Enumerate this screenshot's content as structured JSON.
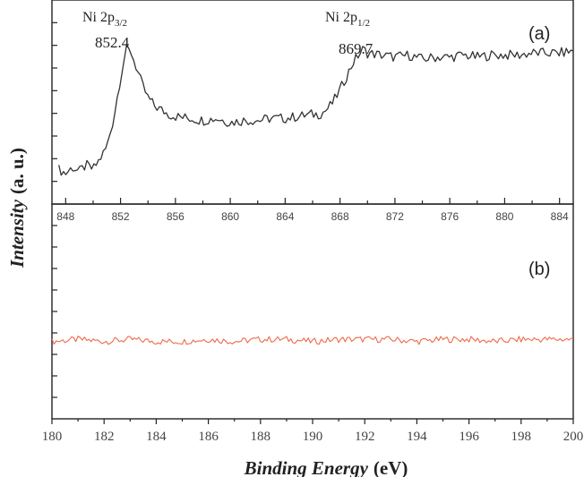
{
  "chart_data": [
    {
      "panel": "(a)",
      "type": "line",
      "xlim": [
        847,
        885
      ],
      "ylim": [
        0,
        100
      ],
      "x_ticks": [
        "848",
        "852",
        "856",
        "860",
        "864",
        "868",
        "872",
        "876",
        "880",
        "884"
      ],
      "annotations": [
        {
          "name": "Ni 2p",
          "sub": "3/2",
          "value": "852.4"
        },
        {
          "name": "Ni 2p",
          "sub": "1/2",
          "value": "869.7"
        }
      ],
      "color": "#333333",
      "series": [
        {
          "x": [
            847.5,
            848.0,
            848.5,
            849.0,
            849.5,
            850.0,
            850.5,
            851.0,
            851.5,
            852.0,
            852.4,
            852.8,
            853.2,
            853.6,
            854.0,
            854.5,
            855.0,
            855.5,
            856.0,
            857.0,
            858.0,
            859.0,
            860.0,
            861.0,
            862.0,
            863.0,
            864.0,
            865.0,
            866.0,
            866.5,
            867.0,
            867.5,
            868.0,
            868.5,
            869.0,
            869.7,
            870.0,
            871.0,
            872.0,
            873.0,
            874.0,
            875.0,
            876.0,
            877.0,
            878.0,
            879.0,
            880.0,
            881.0,
            882.0,
            883.0,
            884.0,
            885.0
          ],
          "y": [
            17,
            15,
            18,
            16,
            19,
            17,
            22,
            28,
            42,
            62,
            76,
            74,
            66,
            58,
            52,
            48,
            46,
            44,
            43,
            42,
            41,
            42,
            40,
            41,
            41,
            42,
            42,
            43,
            44,
            44,
            46,
            50,
            56,
            63,
            70,
            76,
            74,
            73,
            72,
            73,
            71,
            72,
            72,
            73,
            72,
            73,
            73,
            73,
            74,
            74,
            74,
            75
          ]
        }
      ]
    },
    {
      "panel": "(b)",
      "type": "line",
      "xlim": [
        180,
        200
      ],
      "ylim": [
        0,
        100
      ],
      "x_ticks": [
        "180",
        "182",
        "184",
        "186",
        "188",
        "190",
        "192",
        "194",
        "196",
        "198",
        "200"
      ],
      "color": "#ee6a4a",
      "series": [
        {
          "x": [
            180.0,
            181.0,
            182.0,
            183.0,
            184.0,
            185.0,
            186.0,
            187.0,
            188.0,
            189.0,
            190.0,
            191.0,
            192.0,
            193.0,
            194.0,
            195.0,
            196.0,
            197.0,
            198.0,
            199.0,
            200.0
          ],
          "y": [
            36,
            37,
            36,
            37,
            36,
            36,
            37,
            36,
            37,
            37,
            36,
            37,
            37,
            37,
            36,
            37,
            37,
            36,
            37,
            37,
            37
          ]
        }
      ]
    }
  ],
  "labels": {
    "ylabel": "Intensity",
    "ylabel_unit": "(a. u.)",
    "xlabel": "Binding Energy",
    "xlabel_unit": "(eV)"
  }
}
